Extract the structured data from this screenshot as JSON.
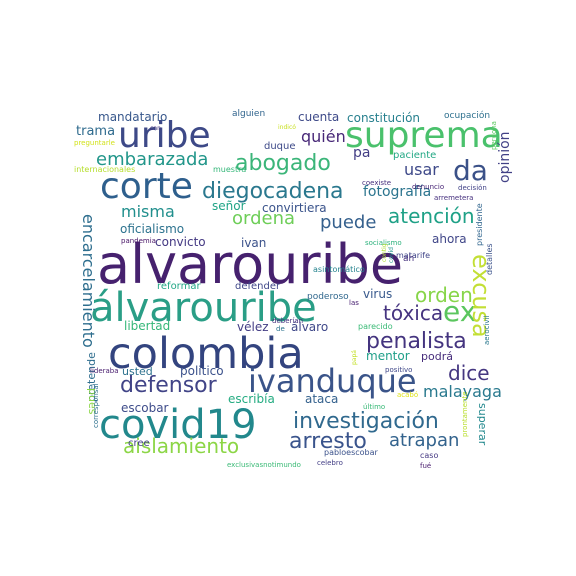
{
  "words": [
    {
      "text": "alvarouribe",
      "color": "#46216e"
    },
    {
      "text": "colombia",
      "color": "#33447f"
    },
    {
      "text": "covid19",
      "color": "#22888c"
    },
    {
      "text": "álvarouribe",
      "color": "#2a9e86"
    },
    {
      "text": "suprema",
      "color": "#4ac16c"
    },
    {
      "text": "corte",
      "color": "#2e5f8d"
    },
    {
      "text": "uribe",
      "color": "#3d4987"
    },
    {
      "text": "ivanduque",
      "color": "#3a5489"
    },
    {
      "text": "da",
      "color": "#3b5188"
    },
    {
      "text": "diegocadena",
      "color": "#2a788e"
    },
    {
      "text": "investigación",
      "color": "#30698e"
    },
    {
      "text": "ex",
      "color": "#5bc65e"
    },
    {
      "text": "excusa",
      "color": "#c3df35"
    },
    {
      "text": "embarazada",
      "color": "#22968a"
    },
    {
      "text": "abogado",
      "color": "#3bb579"
    },
    {
      "text": "penalista",
      "color": "#44347f"
    },
    {
      "text": "defensor",
      "color": "#414487"
    },
    {
      "text": "arresto",
      "color": "#3a548c"
    },
    {
      "text": "encarcelamiento",
      "color": "#2e6e8e"
    },
    {
      "text": "aislamiento",
      "color": "#8cd646"
    },
    {
      "text": "misma",
      "color": "#218f8d"
    },
    {
      "text": "ordena",
      "color": "#6ece58"
    },
    {
      "text": "puede",
      "color": "#35608d"
    },
    {
      "text": "atención",
      "color": "#1fa187"
    },
    {
      "text": "orden",
      "color": "#87d549"
    },
    {
      "text": "tóxica",
      "color": "#463480"
    },
    {
      "text": "dice",
      "color": "#453781"
    },
    {
      "text": "atrapan",
      "color": "#33638d"
    },
    {
      "text": "malayaga",
      "color": "#29798e"
    },
    {
      "text": "usar",
      "color": "#3e4989"
    },
    {
      "text": "fotografía",
      "color": "#2b748e"
    },
    {
      "text": "quién",
      "color": "#482878"
    },
    {
      "text": "pa",
      "color": "#433e85"
    },
    {
      "text": "trama",
      "color": "#2f6b8e"
    },
    {
      "text": "mandatario",
      "color": "#38588c"
    },
    {
      "text": "cuenta",
      "color": "#3e4a89"
    },
    {
      "text": "constitución",
      "color": "#27808e"
    },
    {
      "text": "opinión",
      "color": "#424186"
    },
    {
      "text": "señor",
      "color": "#20a486"
    },
    {
      "text": "convirtiera",
      "color": "#3a538b"
    },
    {
      "text": "convicto",
      "color": "#443983"
    },
    {
      "text": "ivan",
      "color": "#3b528b"
    },
    {
      "text": "oficialismo",
      "color": "#2c728e"
    },
    {
      "text": "ahora",
      "color": "#404688"
    },
    {
      "text": "virus",
      "color": "#38598c"
    },
    {
      "text": "reformar",
      "color": "#22a785"
    },
    {
      "text": "defender",
      "color": "#3f4788"
    },
    {
      "text": "poderoso",
      "color": "#31688e"
    },
    {
      "text": "libertad",
      "color": "#35b779"
    },
    {
      "text": "vélez",
      "color": "#433d84"
    },
    {
      "text": "álvaro",
      "color": "#3f4889"
    },
    {
      "text": "mentor",
      "color": "#1f9f88"
    },
    {
      "text": "politico",
      "color": "#3b518b"
    },
    {
      "text": "usted",
      "color": "#2c718e"
    },
    {
      "text": "escribía",
      "color": "#25ac82"
    },
    {
      "text": "ataca",
      "color": "#34618d"
    },
    {
      "text": "escobar",
      "color": "#3e4c8a"
    },
    {
      "text": "podrá",
      "color": "#472d7b"
    },
    {
      "text": "pretende",
      "color": "#2e6d8e"
    },
    {
      "text": "pues",
      "color": "#8bd646"
    },
    {
      "text": "superar",
      "color": "#23898e"
    },
    {
      "text": "cree",
      "color": "#424086"
    },
    {
      "text": "duque",
      "color": "#3e4a89"
    },
    {
      "text": "alguien",
      "color": "#32658e"
    },
    {
      "text": "ocupación",
      "color": "#2d708e"
    },
    {
      "text": "paciente",
      "color": "#22a884"
    },
    {
      "text": "muestra",
      "color": "#35b779"
    },
    {
      "text": "internacionales",
      "color": "#b5de2b"
    },
    {
      "text": "preguntarle",
      "color": "#d2e21b"
    },
    {
      "text": "cnn",
      "color": "#46327e"
    },
    {
      "text": "indicó",
      "color": "#c8e020"
    },
    {
      "text": "denuncio",
      "color": "#482576"
    },
    {
      "text": "arremetera",
      "color": "#46307e"
    },
    {
      "text": "coexiste",
      "color": "#472f7d"
    },
    {
      "text": "decisión",
      "color": "#414287"
    },
    {
      "text": "perdona",
      "color": "#5ec962"
    },
    {
      "text": "socialismo",
      "color": "#2db27d"
    },
    {
      "text": "matarife",
      "color": "#404588"
    },
    {
      "text": "asintomático",
      "color": "#25838e"
    },
    {
      "text": "contig",
      "color": "#addc30"
    },
    {
      "text": "covid",
      "color": "#1f948c"
    },
    {
      "text": "presidente",
      "color": "#31668e"
    },
    {
      "text": "detalles",
      "color": "#3b528b"
    },
    {
      "text": "aerocivil",
      "color": "#2a788e"
    },
    {
      "text": "pandemia",
      "color": "#481467"
    },
    {
      "text": "las",
      "color": "#482071"
    },
    {
      "text": "deberían",
      "color": "#46307e"
    },
    {
      "text": "de",
      "color": "#2c728e"
    },
    {
      "text": "parecido",
      "color": "#3aba76"
    },
    {
      "text": "papá",
      "color": "#c2df23"
    },
    {
      "text": "positivo",
      "color": "#3f4788"
    },
    {
      "text": "lideraba",
      "color": "#481c6e"
    },
    {
      "text": "corresponsal",
      "color": "#2d708e"
    },
    {
      "text": "último",
      "color": "#38b977"
    },
    {
      "text": "acabó",
      "color": "#dfe318"
    },
    {
      "text": "ah",
      "color": "#46327e"
    },
    {
      "text": "caso",
      "color": "#453882"
    },
    {
      "text": "pabloescobar",
      "color": "#3b528b"
    },
    {
      "text": "celebro",
      "color": "#433e85"
    },
    {
      "text": "fué",
      "color": "#481b6d"
    },
    {
      "text": "exclusivasnotimundo",
      "color": "#3aba76"
    },
    {
      "text": "prontamente",
      "color": "#b8de29"
    }
  ]
}
